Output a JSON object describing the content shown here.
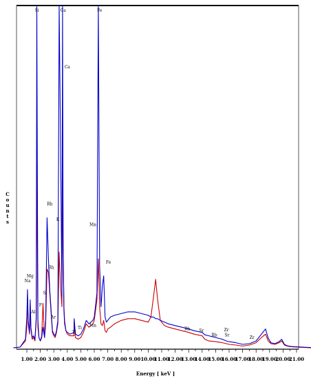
{
  "chart_data": {
    "type": "line",
    "title": "",
    "xlabel": "Energy [ keV ]",
    "ylabel": "Counts",
    "xlim": [
      0.0,
      22.4
    ],
    "ylim": [
      0,
      1000
    ],
    "grid": false,
    "legend": "none",
    "xticks": [
      "1.00",
      "2.00",
      "3.00",
      "4.00",
      "5.00",
      "6.00",
      "7.00",
      "8.00",
      "9.00",
      "10.00",
      "11.00",
      "12.00",
      "13.00",
      "14.00",
      "15.00",
      "16.00",
      "17.00",
      "18.00",
      "19.00",
      "20.00",
      "21.00"
    ],
    "colors": {
      "red": "#cc0000",
      "blue": "#0000cc",
      "axis": "#000000"
    },
    "series": [
      {
        "color": "#cc0000",
        "x": [
          0.0,
          0.5,
          0.9,
          1.0,
          1.05,
          1.1,
          1.2,
          1.25,
          1.3,
          1.4,
          1.5,
          1.6,
          1.7,
          1.74,
          1.78,
          1.82,
          1.9,
          2.0,
          2.1,
          2.2,
          2.31,
          2.4,
          2.5,
          2.6,
          2.7,
          2.8,
          2.9,
          3.0,
          3.1,
          3.2,
          3.3,
          3.4,
          3.5,
          3.6,
          3.65,
          3.69,
          3.75,
          3.8,
          3.9,
          4.0,
          4.2,
          4.5,
          4.51,
          4.6,
          4.8,
          5.0,
          5.2,
          5.41,
          5.6,
          5.9,
          6.0,
          6.2,
          6.3,
          6.4,
          6.5,
          6.6,
          6.7,
          6.8,
          6.9,
          7.0,
          7.2,
          7.5,
          8.0,
          8.5,
          9.0,
          9.5,
          10.0,
          10.2,
          10.4,
          10.55,
          10.7,
          10.9,
          11.2,
          11.5,
          12.0,
          12.5,
          13.0,
          13.4,
          14.0,
          14.2,
          14.5,
          15.0,
          15.5,
          15.8,
          16.0,
          16.5,
          17.0,
          17.5,
          18.0,
          18.4,
          18.7,
          18.9,
          19.1,
          19.4,
          19.7,
          19.9,
          20.1,
          20.3,
          20.6,
          21.0,
          21.5,
          22.0,
          22.4
        ],
        "y": [
          0,
          2,
          20,
          60,
          150,
          70,
          40,
          130,
          55,
          25,
          30,
          20,
          80,
          540,
          300,
          60,
          30,
          20,
          35,
          130,
          30,
          70,
          230,
          220,
          160,
          100,
          45,
          35,
          30,
          45,
          70,
          280,
          180,
          120,
          760,
          300,
          120,
          80,
          50,
          40,
          35,
          35,
          80,
          30,
          25,
          30,
          45,
          70,
          60,
          70,
          80,
          140,
          260,
          120,
          70,
          65,
          80,
          50,
          45,
          55,
          60,
          70,
          80,
          85,
          85,
          80,
          75,
          90,
          150,
          200,
          140,
          80,
          65,
          60,
          55,
          50,
          45,
          40,
          35,
          25,
          20,
          18,
          15,
          12,
          10,
          8,
          5,
          8,
          15,
          30,
          40,
          20,
          12,
          10,
          15,
          20,
          8,
          5,
          3,
          2,
          1,
          0,
          0
        ]
      },
      {
        "color": "#0000cc",
        "x": [
          0.0,
          0.5,
          0.9,
          1.0,
          1.05,
          1.1,
          1.2,
          1.25,
          1.3,
          1.4,
          1.5,
          1.6,
          1.7,
          1.74,
          1.78,
          1.82,
          1.9,
          2.0,
          2.1,
          2.2,
          2.31,
          2.4,
          2.5,
          2.6,
          2.7,
          2.8,
          2.9,
          3.0,
          3.1,
          3.2,
          3.3,
          3.4,
          3.5,
          3.6,
          3.65,
          3.69,
          3.75,
          3.8,
          3.9,
          4.0,
          4.2,
          4.5,
          4.51,
          4.6,
          4.8,
          5.0,
          5.2,
          5.41,
          5.6,
          5.9,
          6.0,
          6.2,
          6.3,
          6.4,
          6.5,
          6.6,
          6.7,
          6.8,
          6.9,
          7.0,
          7.2,
          7.5,
          8.0,
          8.5,
          9.0,
          9.5,
          10.0,
          10.2,
          10.4,
          10.55,
          10.7,
          10.9,
          11.2,
          11.5,
          12.0,
          12.5,
          13.0,
          13.4,
          14.0,
          14.2,
          14.5,
          15.0,
          15.5,
          15.8,
          16.0,
          16.5,
          17.0,
          17.5,
          18.0,
          18.4,
          18.7,
          18.9,
          19.1,
          19.4,
          19.7,
          19.9,
          20.1,
          20.3,
          20.6,
          21.0,
          21.5,
          22.0,
          22.4
        ],
        "y": [
          0,
          2,
          25,
          90,
          170,
          80,
          45,
          140,
          60,
          30,
          35,
          25,
          90,
          1000,
          500,
          80,
          30,
          20,
          30,
          60,
          30,
          80,
          380,
          260,
          170,
          110,
          50,
          40,
          35,
          50,
          80,
          1000,
          600,
          150,
          1000,
          320,
          110,
          70,
          50,
          45,
          40,
          45,
          85,
          40,
          35,
          40,
          55,
          80,
          70,
          80,
          90,
          160,
          1000,
          240,
          120,
          180,
          210,
          90,
          75,
          80,
          90,
          95,
          100,
          105,
          105,
          100,
          95,
          90,
          90,
          85,
          85,
          80,
          75,
          70,
          65,
          60,
          55,
          50,
          45,
          38,
          35,
          30,
          25,
          20,
          18,
          15,
          10,
          12,
          20,
          40,
          55,
          28,
          15,
          12,
          18,
          25,
          10,
          6,
          4,
          3,
          2,
          1,
          0
        ]
      }
    ],
    "annotations": [
      {
        "text": "Si",
        "x": 1.74,
        "y": 1000
      },
      {
        "text": "Ca",
        "x": 3.69,
        "y": 1000
      },
      {
        "text": "Ca",
        "x": 4.0,
        "y": 810
      },
      {
        "text": "Fe",
        "x": 6.4,
        "y": 1000
      },
      {
        "text": "Rh",
        "x": 2.7,
        "y": 410
      },
      {
        "text": "K",
        "x": 3.3,
        "y": 365
      },
      {
        "text": "Mn",
        "x": 5.9,
        "y": 350
      },
      {
        "text": "Rh",
        "x": 2.8,
        "y": 225
      },
      {
        "text": "Fe",
        "x": 7.05,
        "y": 240
      },
      {
        "text": "Mg",
        "x": 1.25,
        "y": 200
      },
      {
        "text": "Na",
        "x": 1.05,
        "y": 185
      },
      {
        "text": "S",
        "x": 2.31,
        "y": 150
      },
      {
        "text": "Al",
        "x": 1.48,
        "y": 95
      },
      {
        "text": "P",
        "x": 2.01,
        "y": 115
      },
      {
        "text": "Ar",
        "x": 2.96,
        "y": 80
      },
      {
        "text": "Ti",
        "x": 4.51,
        "y": 35
      },
      {
        "text": "Ti",
        "x": 4.93,
        "y": 48
      },
      {
        "text": "Mn",
        "x": 5.9,
        "y": 55
      },
      {
        "text": "Rh",
        "x": 12.9,
        "y": 45
      },
      {
        "text": "Sr",
        "x": 13.95,
        "y": 40
      },
      {
        "text": "Rb",
        "x": 14.9,
        "y": 27
      },
      {
        "text": "Zr",
        "x": 15.8,
        "y": 42
      },
      {
        "text": "Sr",
        "x": 15.84,
        "y": 27
      },
      {
        "text": "Zr",
        "x": 17.7,
        "y": 20
      }
    ]
  }
}
